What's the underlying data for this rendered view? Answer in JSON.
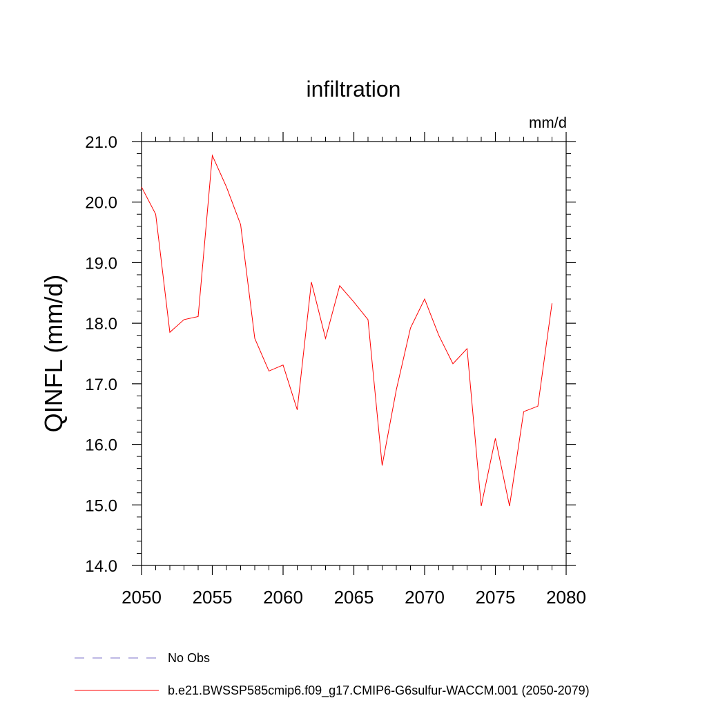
{
  "chart_data": {
    "type": "line",
    "title": "infiltration",
    "units": "mm/d",
    "ylabel": "QINFL  (mm/d)",
    "xlabel": "",
    "xlim": [
      2050,
      2080
    ],
    "ylim": [
      14.0,
      21.0
    ],
    "x_ticks": [
      "2050",
      "2055",
      "2060",
      "2065",
      "2070",
      "2075",
      "2080"
    ],
    "y_ticks": [
      "14.0",
      "15.0",
      "16.0",
      "17.0",
      "18.0",
      "19.0",
      "20.0",
      "21.0"
    ],
    "grid": false,
    "legend_position": "bottom",
    "series": [
      {
        "name": "b.e21.BWSSP585cmip6.f09_g17.CMIP6-G6sulfur-WACCM.001 (2050-2079)",
        "color": "#ff0000",
        "x": [
          2050,
          2051,
          2052,
          2053,
          2054,
          2055,
          2056,
          2057,
          2058,
          2059,
          2060,
          2061,
          2062,
          2063,
          2064,
          2065,
          2066,
          2067,
          2068,
          2069,
          2070,
          2071,
          2072,
          2073,
          2074,
          2075,
          2076,
          2077,
          2078,
          2079
        ],
        "y": [
          20.25,
          19.8,
          17.85,
          18.06,
          18.11,
          20.77,
          20.25,
          19.63,
          17.75,
          17.21,
          17.31,
          16.57,
          18.68,
          17.75,
          18.62,
          18.35,
          18.06,
          15.65,
          16.9,
          17.92,
          18.4,
          17.8,
          17.33,
          17.58,
          14.98,
          16.1,
          14.98,
          16.54,
          16.63,
          18.33
        ]
      }
    ],
    "legend": [
      {
        "label": "No Obs",
        "style": "dashed",
        "color": "#7b72c8"
      },
      {
        "label": "b.e21.BWSSP585cmip6.f09_g17.CMIP6-G6sulfur-WACCM.001 (2050-2079)",
        "style": "solid",
        "color": "#ff0000"
      }
    ]
  }
}
